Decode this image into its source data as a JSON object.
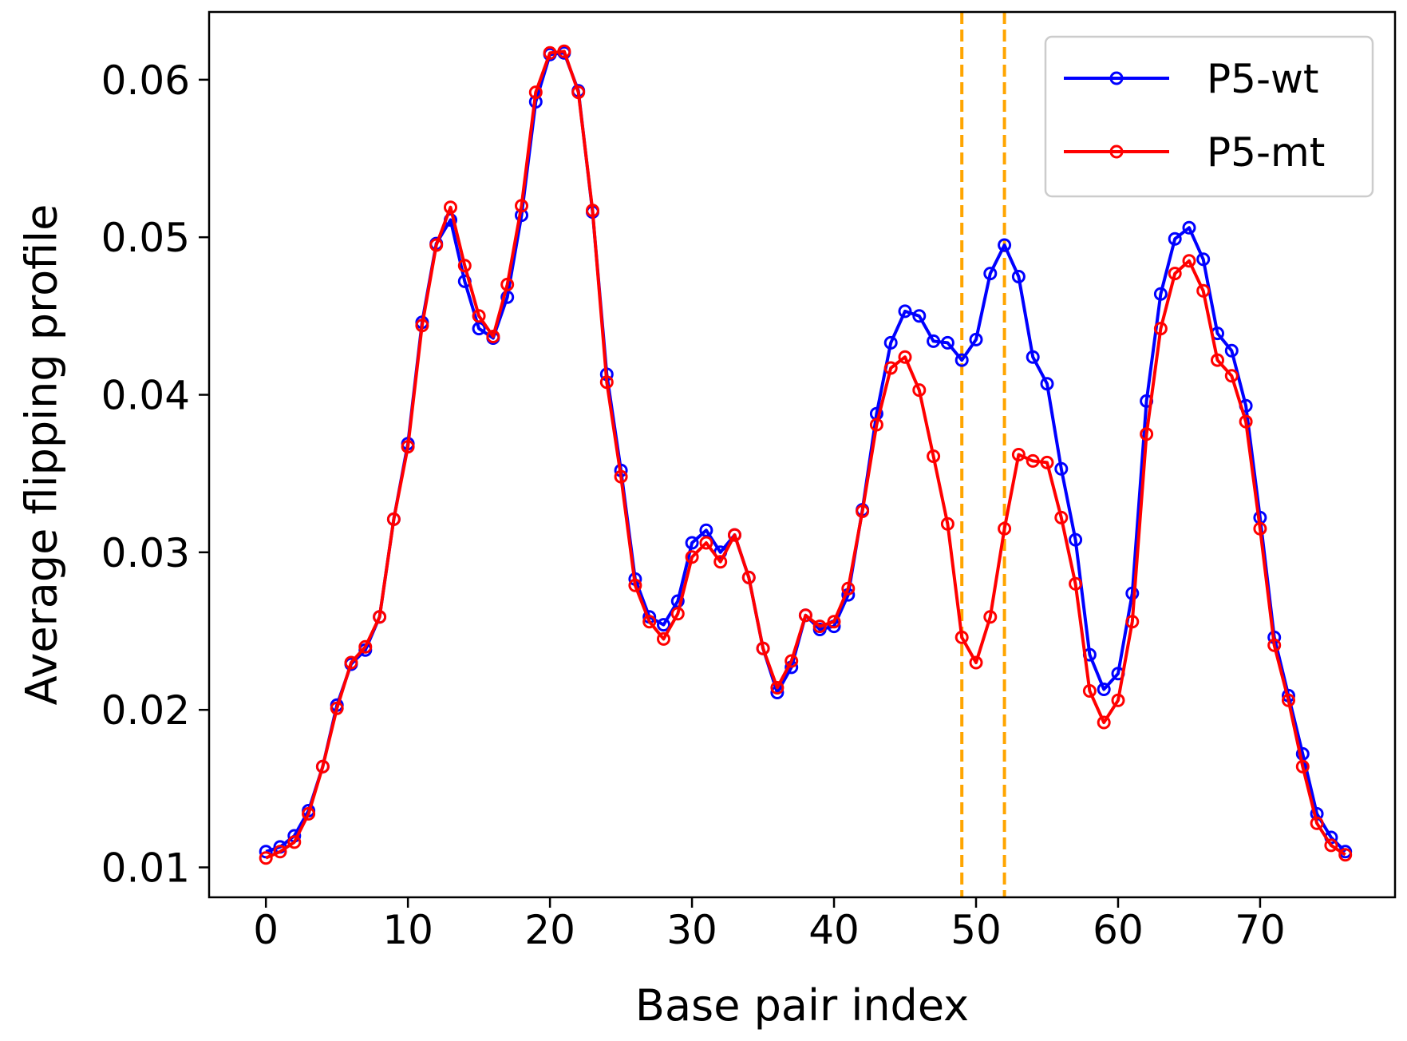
{
  "chart_data": {
    "type": "line",
    "title": "",
    "xlabel": "Base pair index",
    "ylabel": "Average flipping profile",
    "xlim": [
      -4,
      79.5
    ],
    "ylim": [
      0.0081,
      0.0643
    ],
    "xticks": [
      0,
      10,
      20,
      30,
      40,
      50,
      60,
      70
    ],
    "yticks": [
      0.01,
      0.02,
      0.03,
      0.04,
      0.05,
      0.06
    ],
    "xtick_labels": [
      "0",
      "10",
      "20",
      "30",
      "40",
      "50",
      "60",
      "70"
    ],
    "ytick_labels": [
      "0.01",
      "0.02",
      "0.03",
      "0.04",
      "0.05",
      "0.06"
    ],
    "grid": false,
    "legend": {
      "position": "top-right"
    },
    "vlines": [
      {
        "x": 49,
        "color": "#FFA500",
        "style": "dashed"
      },
      {
        "x": 52,
        "color": "#FFA500",
        "style": "dashed"
      }
    ],
    "x": [
      0,
      1,
      2,
      3,
      4,
      5,
      6,
      7,
      8,
      9,
      10,
      11,
      12,
      13,
      14,
      15,
      16,
      17,
      18,
      19,
      20,
      21,
      22,
      23,
      24,
      25,
      26,
      27,
      28,
      29,
      30,
      31,
      32,
      33,
      34,
      35,
      36,
      37,
      38,
      39,
      40,
      41,
      42,
      43,
      44,
      45,
      46,
      47,
      48,
      49,
      50,
      51,
      52,
      53,
      54,
      55,
      56,
      57,
      58,
      59,
      60,
      61,
      62,
      63,
      64,
      65,
      66,
      67,
      68,
      69,
      70,
      71,
      72,
      73,
      74,
      75,
      76
    ],
    "series": [
      {
        "name": "P5-wt",
        "color": "#0000FF",
        "marker": "circle-open",
        "values": [
          0.011,
          0.0113,
          0.012,
          0.0136,
          0.0164,
          0.0203,
          0.0229,
          0.0238,
          0.0259,
          0.0321,
          0.0369,
          0.0446,
          0.0496,
          0.0511,
          0.0472,
          0.0442,
          0.0436,
          0.0462,
          0.0514,
          0.0586,
          0.0616,
          0.0617,
          0.0593,
          0.0516,
          0.0413,
          0.0352,
          0.0283,
          0.0259,
          0.0254,
          0.0269,
          0.0306,
          0.0314,
          0.03,
          0.0311,
          0.0284,
          0.0239,
          0.0211,
          0.0227,
          0.026,
          0.0251,
          0.0253,
          0.0273,
          0.0327,
          0.0388,
          0.0433,
          0.0453,
          0.045,
          0.0434,
          0.0433,
          0.0422,
          0.0435,
          0.0477,
          0.0495,
          0.0475,
          0.0424,
          0.0407,
          0.0353,
          0.0308,
          0.0235,
          0.0213,
          0.0223,
          0.0274,
          0.0396,
          0.0464,
          0.0499,
          0.0506,
          0.0486,
          0.0439,
          0.0428,
          0.0393,
          0.0322,
          0.0246,
          0.0209,
          0.0172,
          0.0134,
          0.0119,
          0.011
        ]
      },
      {
        "name": "P5-mt",
        "color": "#FF0000",
        "marker": "circle-open",
        "values": [
          0.0106,
          0.011,
          0.0116,
          0.0134,
          0.0164,
          0.0201,
          0.023,
          0.024,
          0.0259,
          0.0321,
          0.0367,
          0.0444,
          0.0495,
          0.0519,
          0.0482,
          0.045,
          0.0437,
          0.047,
          0.052,
          0.0592,
          0.0617,
          0.0618,
          0.0592,
          0.0517,
          0.0408,
          0.0348,
          0.0279,
          0.0256,
          0.0245,
          0.0261,
          0.0297,
          0.0306,
          0.0294,
          0.0311,
          0.0284,
          0.0239,
          0.0214,
          0.0231,
          0.026,
          0.0253,
          0.0256,
          0.0277,
          0.0326,
          0.0381,
          0.0417,
          0.0424,
          0.0403,
          0.0361,
          0.0318,
          0.0246,
          0.023,
          0.0259,
          0.0315,
          0.0362,
          0.0358,
          0.0357,
          0.0322,
          0.028,
          0.0212,
          0.0192,
          0.0206,
          0.0256,
          0.0375,
          0.0442,
          0.0477,
          0.0485,
          0.0466,
          0.0422,
          0.0412,
          0.0383,
          0.0315,
          0.0241,
          0.0206,
          0.0164,
          0.0128,
          0.0114,
          0.0108
        ]
      }
    ]
  }
}
